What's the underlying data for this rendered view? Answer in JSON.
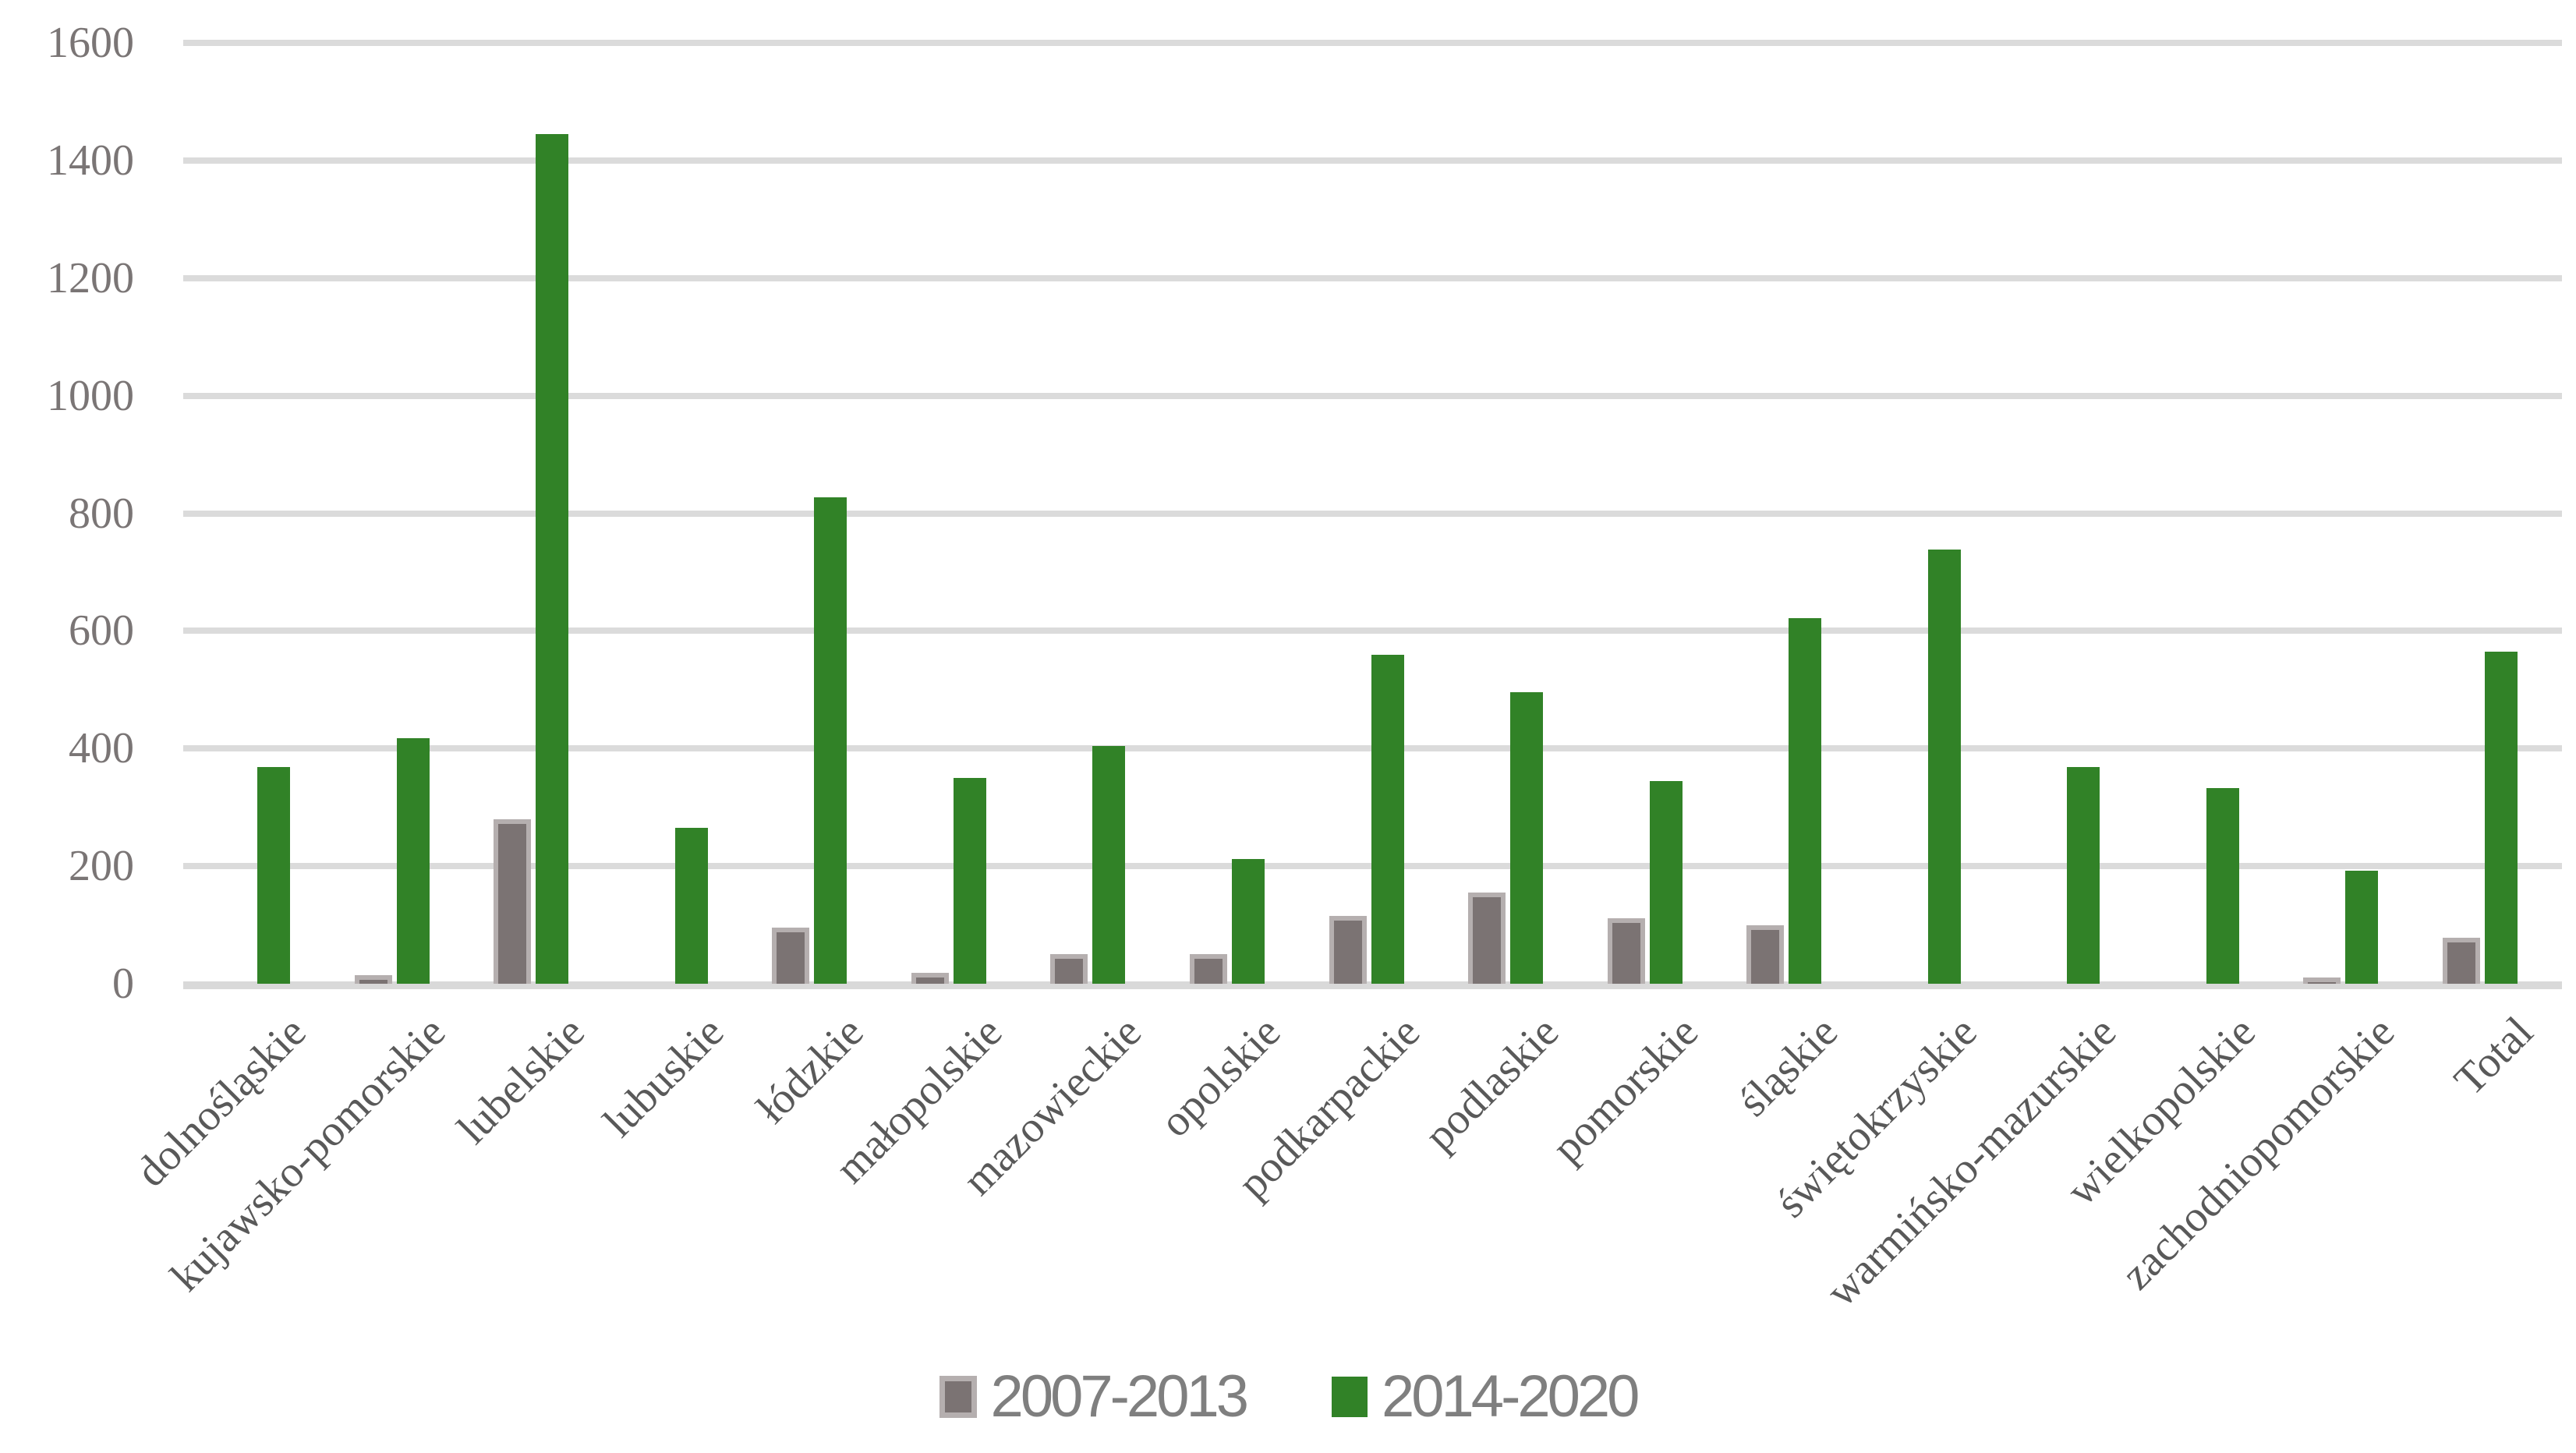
{
  "chart_data": {
    "type": "bar",
    "title": "",
    "xlabel": "",
    "ylabel": "",
    "categories": [
      "dolnośląskie",
      "kujawsko-pomorskie",
      "lubelskie",
      "lubuskie",
      "łódzkie",
      "małopolskie",
      "mazowieckie",
      "opolskie",
      "podkarpackie",
      "podlaskie",
      "pomorskie",
      "śląskie",
      "świętokrzyskie",
      "warmińsko-mazurskie",
      "wielkopolskie",
      "zachodniopomorskie",
      "Total"
    ],
    "series": [
      {
        "name": "2007-2013",
        "color": "#7b7373",
        "border_color": "#b5afaf",
        "values": [
          0,
          15,
          280,
          0,
          95,
          18,
          50,
          50,
          115,
          155,
          112,
          100,
          0,
          0,
          0,
          10,
          78
        ]
      },
      {
        "name": "2014-2020",
        "color": "#318227",
        "values": [
          368,
          418,
          1445,
          265,
          828,
          350,
          405,
          212,
          560,
          496,
          345,
          622,
          738,
          368,
          333,
          192,
          565
        ]
      }
    ],
    "ylim": [
      0,
      1600
    ],
    "ytick_step": 200,
    "yticks": [
      "0",
      "200",
      "400",
      "600",
      "800",
      "1000",
      "1200",
      "1400",
      "1600"
    ],
    "grid": "horizontal",
    "gridline_color": "#dbdbdb",
    "legend_position": "bottom",
    "axis_text_color": "#7a7575",
    "category_text_color": "#595959",
    "legend_text_color": "#7f7f7f"
  }
}
